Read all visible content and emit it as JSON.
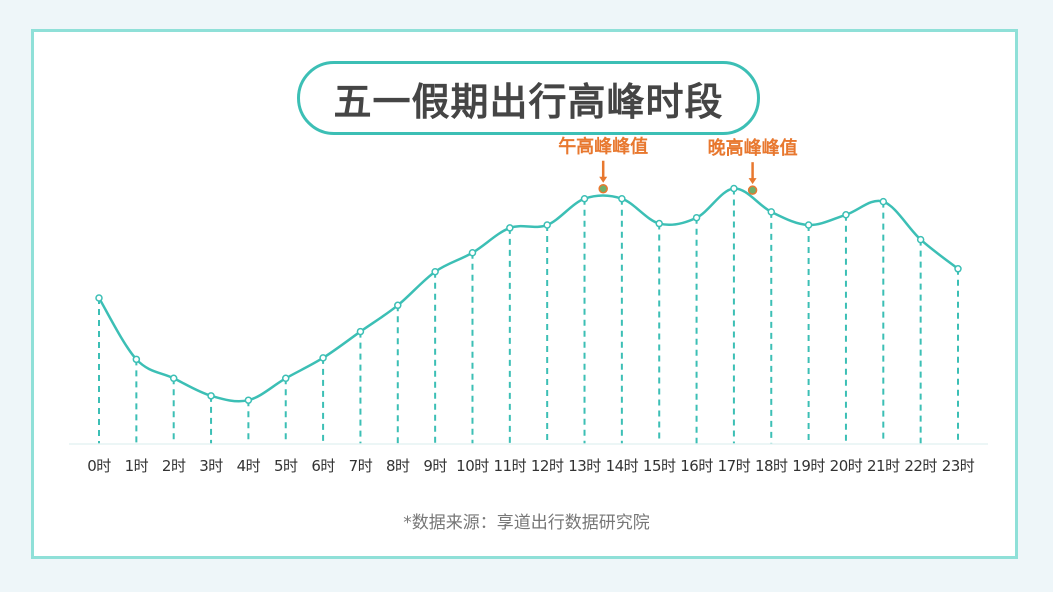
{
  "title": "五一假期出行高峰时段",
  "source_note": "*数据来源：享道出行数据研究院",
  "colors": {
    "line": "#3cbfb5",
    "highlight": "#e8782f",
    "border": "#8fe0d8",
    "text": "#454545"
  },
  "chart_data": {
    "type": "line",
    "categories": [
      "0时",
      "1时",
      "2时",
      "3时",
      "4时",
      "5时",
      "6时",
      "7时",
      "8时",
      "9时",
      "10时",
      "11时",
      "12时",
      "13时",
      "14时",
      "15时",
      "16时",
      "17时",
      "18时",
      "19时",
      "20时",
      "21时",
      "22时",
      "23时"
    ],
    "values": [
      100,
      58,
      45,
      33,
      30,
      45,
      59,
      77,
      95,
      118,
      131,
      148,
      150,
      168,
      168,
      151,
      155,
      175,
      159,
      150,
      157,
      166,
      140,
      120
    ],
    "ylim": [
      0,
      200
    ],
    "grid": false,
    "annotations": [
      {
        "label": "午高峰峰值",
        "at": 13.5
      },
      {
        "label": "晚高峰峰值",
        "at": 17.5
      }
    ]
  }
}
